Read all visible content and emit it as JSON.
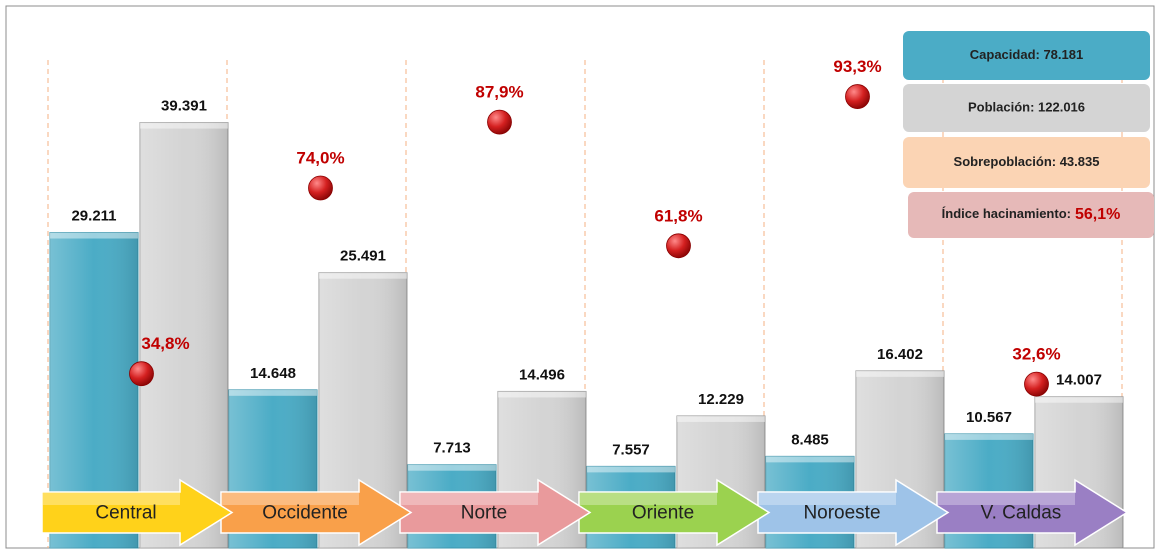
{
  "chart_data": {
    "type": "bar",
    "categories": [
      "Central",
      "Occidente",
      "Norte",
      "Oriente",
      "Noroeste",
      "V. Caldas"
    ],
    "category_colors": [
      "#ffd21a",
      "#f9a04a",
      "#e99a9c",
      "#9bd24f",
      "#9ec3e8",
      "#9a7fc4"
    ],
    "series": [
      {
        "name": "Capacidad: 78.181",
        "color": "#4bacc6",
        "values": [
          29211,
          14648,
          7713,
          7557,
          8485,
          10567
        ],
        "value_labels": [
          "29.211",
          "14.648",
          "7.713",
          "7.557",
          "8.485",
          "10.567"
        ]
      },
      {
        "name": "Población:  122.016",
        "color": "#d4d4d4",
        "values": [
          39391,
          25491,
          14496,
          12229,
          16402,
          14007
        ],
        "value_labels": [
          "39.391",
          "25.491",
          "14.496",
          "12.229",
          "16.402",
          "14.007"
        ]
      },
      {
        "type": "scatter",
        "axis": "y2",
        "color": "#c0181b",
        "values": [
          34.8,
          74.0,
          87.9,
          61.8,
          93.3,
          32.6
        ],
        "value_labels": [
          "34,8%",
          "74,0%",
          "87,9%",
          "61,8%",
          "93,3%",
          "32,6%"
        ]
      }
    ],
    "annotations": [
      {
        "text": "Sobrepoblación: 43.835",
        "color": "#fbd4b4"
      },
      {
        "text": "Índice hacinamiento:",
        "value_text": "56,1%",
        "color": "#e6b9b8"
      }
    ],
    "ylim": [
      0,
      50000
    ],
    "y2lim": [
      -2,
      112
    ]
  }
}
